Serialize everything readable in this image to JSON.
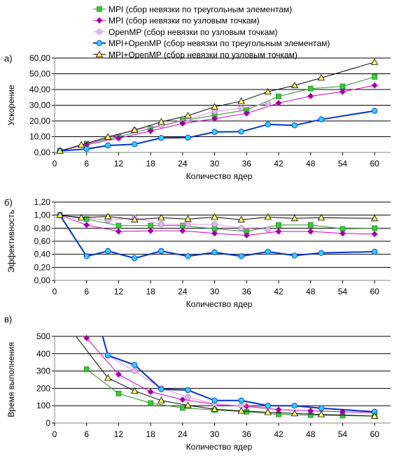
{
  "legend": {
    "position": "top",
    "entries": [
      {
        "label": "MPI (сбор невязки по треугольным элементам)",
        "color": "#2e8b2e",
        "fill": "#33cc33",
        "marker": "square"
      },
      {
        "label": "MPI (сбор невязки по узловым точкам)",
        "color": "#cc00cc",
        "fill": "#990099",
        "marker": "diamond"
      },
      {
        "label": "OpenMP (сбор невязки по узловым точкам)",
        "color": "#ee88ee",
        "fill": "#cfc2e8",
        "marker": "circle"
      },
      {
        "label": "MPI+OpenMP (сбор невязки по треугольным элементам)",
        "color": "#0033cc",
        "fill": "#33ccff",
        "marker": "circle"
      },
      {
        "label": "MPI+OpenMP (сбор невязки по узловым точкам)",
        "color": "#000000",
        "fill": "#ffff66",
        "marker": "triangle"
      }
    ]
  },
  "chart_data": [
    {
      "type": "line",
      "panel_label": "а)",
      "xlabel": "Количество ядер",
      "ylabel": "Ускорение",
      "xlim": [
        0,
        63
      ],
      "ylim": [
        0,
        60
      ],
      "xticks": [
        0,
        6,
        12,
        18,
        24,
        30,
        36,
        42,
        48,
        54,
        60
      ],
      "yticks": [
        "0,00",
        "10,00",
        "20,00",
        "30,00",
        "40,00",
        "50,00",
        "60,00"
      ],
      "grid": "horizontal",
      "series": [
        {
          "name": "MPI (сбор невязки по треугольным элементам)",
          "x": [
            1,
            6,
            12,
            18,
            24,
            30,
            36,
            42,
            48,
            54,
            60
          ],
          "y": [
            1,
            5.6,
            10,
            15.2,
            20.2,
            23.6,
            27,
            35.6,
            40.6,
            42,
            48
          ]
        },
        {
          "name": "MPI (сбор невязки по узловым точкам)",
          "x": [
            1,
            6,
            12,
            18,
            24,
            30,
            36,
            42,
            48,
            54,
            60
          ],
          "y": [
            1,
            5,
            9,
            13.6,
            18.4,
            21.4,
            24.8,
            31.4,
            35.8,
            38.6,
            42.6
          ]
        },
        {
          "name": "OpenMP (сбор невязки по узловым точкам)",
          "x": [
            1,
            10,
            15,
            20,
            25,
            30,
            35,
            40
          ],
          "y": [
            1,
            9.2,
            14.4,
            17.2,
            21.4,
            26,
            28.2,
            31
          ]
        },
        {
          "name": "MPI+OpenMP (сбор невязки по треугольным элементам)",
          "x": [
            1,
            6,
            10,
            15,
            20,
            25,
            30,
            35,
            40,
            45,
            50,
            60
          ],
          "y": [
            1,
            2.2,
            4.4,
            5.2,
            9.2,
            9.4,
            13,
            13.2,
            17.8,
            17.2,
            21,
            26.4
          ]
        },
        {
          "name": "MPI+OpenMP (сбор невязки по узловым точкам)",
          "x": [
            1,
            5,
            10,
            15,
            20,
            25,
            30,
            35,
            40,
            45,
            50,
            60
          ],
          "y": [
            1,
            4.8,
            9.8,
            14.2,
            19.4,
            23.4,
            29,
            32.6,
            38.6,
            42.6,
            47.4,
            57.4
          ]
        }
      ]
    },
    {
      "type": "line",
      "panel_label": "б)",
      "xlabel": "Количество ядер",
      "ylabel": "Эффективность",
      "xlim": [
        0,
        63
      ],
      "ylim": [
        0,
        1.2
      ],
      "xticks": [
        0,
        6,
        12,
        18,
        24,
        30,
        36,
        42,
        48,
        54,
        60
      ],
      "yticks": [
        "0,00",
        "0,20",
        "0,40",
        "0,60",
        "0,80",
        "1,00",
        "1,20"
      ],
      "grid": "horizontal",
      "series": [
        {
          "name": "MPI (сбор невязки по треугольным элементам)",
          "x": [
            1,
            6,
            12,
            18,
            24,
            30,
            36,
            42,
            48,
            54,
            60
          ],
          "y": [
            1,
            0.94,
            0.84,
            0.84,
            0.84,
            0.79,
            0.75,
            0.85,
            0.85,
            0.79,
            0.8
          ]
        },
        {
          "name": "MPI (сбор невязки по узловым точкам)",
          "x": [
            1,
            6,
            12,
            18,
            24,
            30,
            36,
            42,
            48,
            54,
            60
          ],
          "y": [
            1,
            0.85,
            0.75,
            0.76,
            0.76,
            0.72,
            0.69,
            0.75,
            0.75,
            0.72,
            0.71
          ]
        },
        {
          "name": "OpenMP (сбор невязки по узловым точкам)",
          "x": [
            1,
            10,
            15,
            20,
            25,
            30,
            35,
            40
          ],
          "y": [
            1,
            0.92,
            0.96,
            0.86,
            0.86,
            0.86,
            0.8,
            0.78
          ]
        },
        {
          "name": "MPI+OpenMP (сбор невязки по треугольным элементам)",
          "x": [
            1,
            6,
            10,
            15,
            20,
            25,
            30,
            35,
            40,
            45,
            50,
            60
          ],
          "y": [
            1,
            0.37,
            0.45,
            0.34,
            0.45,
            0.37,
            0.43,
            0.37,
            0.44,
            0.38,
            0.42,
            0.44
          ]
        },
        {
          "name": "MPI+OpenMP (сбор невязки по узловым точкам)",
          "x": [
            1,
            5,
            10,
            15,
            20,
            25,
            30,
            35,
            40,
            45,
            50,
            60
          ],
          "y": [
            1,
            0.96,
            0.98,
            0.93,
            0.96,
            0.94,
            0.97,
            0.93,
            0.97,
            0.95,
            0.96,
            0.95
          ]
        }
      ]
    },
    {
      "type": "line",
      "panel_label": "в)",
      "xlabel": "Количество ядер",
      "ylabel": "Время выполнения",
      "xlim": [
        0,
        63
      ],
      "ylim": [
        0,
        500
      ],
      "xticks": [
        0,
        6,
        12,
        18,
        24,
        30,
        36,
        42,
        48,
        54,
        60
      ],
      "yticks": [
        "0",
        "100",
        "200",
        "300",
        "400",
        "500"
      ],
      "grid": "horizontal",
      "series": [
        {
          "name": "MPI (сбор невязки по треугольным элементам)",
          "x": [
            6,
            12,
            18,
            24,
            30,
            36,
            42,
            48,
            54,
            60
          ],
          "y": [
            310,
            170,
            115,
            87,
            75,
            65,
            50,
            45,
            43,
            40
          ]
        },
        {
          "name": "MPI (сбор невязки по узловым точкам)",
          "x": [
            6,
            12,
            18,
            24,
            30,
            36,
            42,
            48,
            54,
            60
          ],
          "y": [
            490,
            280,
            180,
            135,
            108,
            96,
            77,
            70,
            65,
            60
          ]
        },
        {
          "name": "OpenMP (сбор невязки по узловым точкам)",
          "x": [
            10,
            15,
            20,
            25,
            30,
            35,
            40
          ],
          "y": [
            390,
            300,
            200,
            150,
            110,
            100,
            90
          ]
        },
        {
          "name": "MPI+OpenMP (сбор невязки по треугольным элементам)",
          "x": [
            9,
            10,
            15,
            20,
            25,
            30,
            35,
            40,
            45,
            50,
            60
          ],
          "y": [
            500,
            390,
            335,
            195,
            190,
            130,
            130,
            100,
            100,
            85,
            65
          ]
        },
        {
          "name": "MPI+OpenMP (сбор невязки по узловым точкам)",
          "x": [
            4,
            10,
            15,
            20,
            25,
            30,
            35,
            40,
            45,
            50,
            60
          ],
          "y": [
            500,
            260,
            185,
            130,
            102,
            80,
            70,
            62,
            55,
            50,
            40
          ]
        }
      ]
    }
  ]
}
